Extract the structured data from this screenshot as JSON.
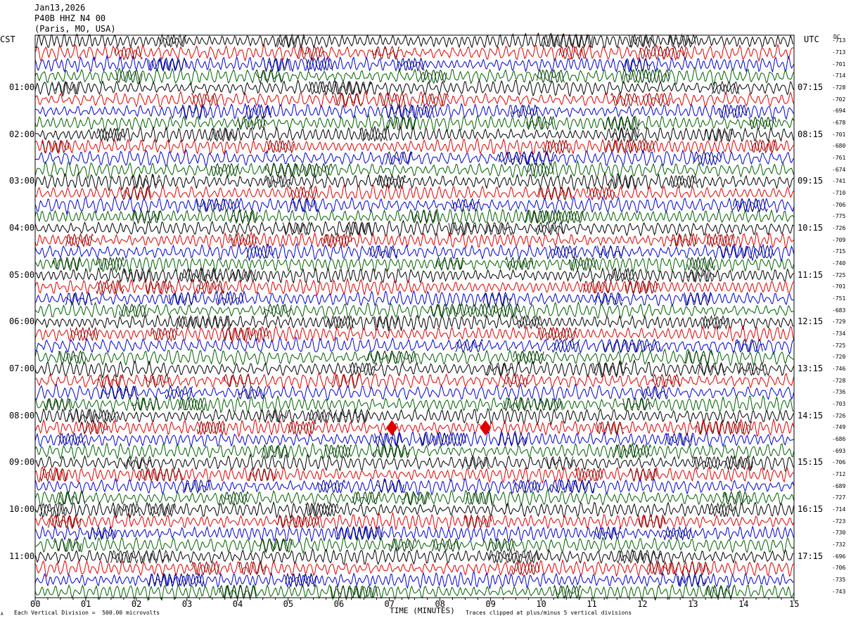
{
  "header": {
    "date": "Jan13,2026",
    "station": "P40B HHZ N4 00",
    "location": "(Paris, MO, USA)"
  },
  "left_axis_label": "CST",
  "right_axis_label": "UTC",
  "dc_label": "DC",
  "footer": {
    "scale_note": "Each Vertical Division =  500.00 microvolts",
    "clip_note": "Traces clipped at plus/minus 5 vertical divisions",
    "corner_mark": "A"
  },
  "colors": {
    "trace_cycle": [
      "#000000",
      "#e00000",
      "#0000d0",
      "#006000"
    ],
    "secondary_cycle": [
      "#202020",
      "#800000",
      "#000080",
      "#003000"
    ]
  },
  "chart_data": {
    "type": "line",
    "title": "P40B HHZ N4 00",
    "xlabel": "TIME (MINUTES)",
    "x_ticks": [
      "00",
      "01",
      "02",
      "03",
      "04",
      "05",
      "06",
      "07",
      "08",
      "09",
      "10",
      "11",
      "12",
      "13",
      "14",
      "15"
    ],
    "xlim": [
      0,
      15
    ],
    "rows_per_hour": 4,
    "row_count": 48,
    "start_cst_hour": 0,
    "utc_offset_minutes": 375,
    "left_hour_labels": [
      "01:00",
      "02:00",
      "03:00",
      "04:00",
      "05:00",
      "06:00",
      "07:00",
      "08:00",
      "09:00",
      "10:00",
      "11:00"
    ],
    "right_hour_labels": [
      "07:15",
      "08:15",
      "09:15",
      "10:15",
      "11:15",
      "12:15",
      "13:15",
      "14:15",
      "15:15",
      "16:15",
      "17:15"
    ],
    "dc_offsets": [
      "-713",
      "-713",
      "-701",
      "-714",
      "-728",
      "-702",
      "-694",
      "-678",
      "-701",
      "-680",
      "-761",
      "-674",
      "-741",
      "-710",
      "-706",
      "-775",
      "-726",
      "-709",
      "-715",
      "-740",
      "-725",
      "-701",
      "-751",
      "-683",
      "-729",
      "-734",
      "-725",
      "-720",
      "-746",
      "-728",
      "-736",
      "-703",
      "-726",
      "-749",
      "-686",
      "-693",
      "-706",
      "-712",
      "-689",
      "-727",
      "-714",
      "-723",
      "-730",
      "-732",
      "-696",
      "-706",
      "-735",
      "-743"
    ],
    "events": [
      {
        "row": 33,
        "minute": 8.9
      },
      {
        "row": 33,
        "minute": 7.05
      }
    ],
    "units": "microvolts"
  }
}
